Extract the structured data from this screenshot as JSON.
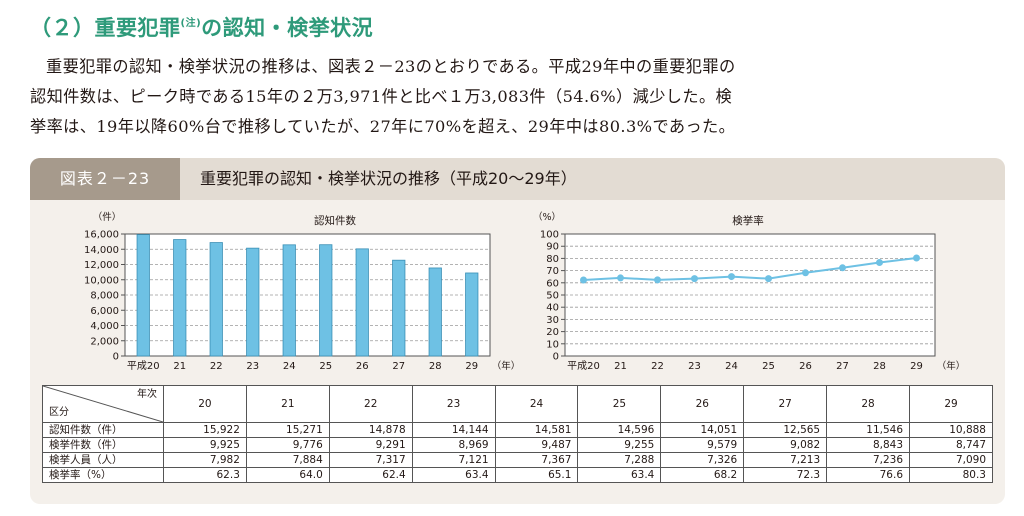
{
  "section": {
    "number": "（２）",
    "title_main": "重要犯罪",
    "title_note": "(注)",
    "title_rest": "の認知・検挙状況"
  },
  "paragraph": {
    "line1": "重要犯罪の認知・検挙状況の推移は、図表２－23のとおりである。平成29年中の重要犯罪の",
    "line2": "認知件数は、ピーク時である15年の２万3,971件と比べ１万3,083件（54.6%）減少した。検",
    "line3": "挙率は、19年以降60%台で推移していたが、27年に70%を超え、29年中は80.3%であった。"
  },
  "figure": {
    "tag": "図表２－23",
    "title": "重要犯罪の認知・検挙状況の推移（平成20〜29年）"
  },
  "chart_data": [
    {
      "type": "bar",
      "title": "認知件数",
      "ylabel": "（件）",
      "xlabel": "（年）",
      "categories": [
        "平成20",
        "21",
        "22",
        "23",
        "24",
        "25",
        "26",
        "27",
        "28",
        "29"
      ],
      "values": [
        15922,
        15271,
        14878,
        14144,
        14581,
        14596,
        14051,
        12565,
        11546,
        10888
      ],
      "ylim": [
        0,
        16000
      ],
      "yticks": [
        "0",
        "2,000",
        "4,000",
        "6,000",
        "8,000",
        "10,000",
        "12,000",
        "14,000",
        "16,000"
      ],
      "grid": true,
      "color": "#6ec1e4"
    },
    {
      "type": "line",
      "title": "検挙率",
      "ylabel": "（%）",
      "xlabel": "（年）",
      "categories": [
        "平成20",
        "21",
        "22",
        "23",
        "24",
        "25",
        "26",
        "27",
        "28",
        "29"
      ],
      "values": [
        62.3,
        64.0,
        62.4,
        63.4,
        65.1,
        63.4,
        68.2,
        72.3,
        76.6,
        80.3
      ],
      "ylim": [
        0,
        100
      ],
      "yticks": [
        "0",
        "10",
        "20",
        "30",
        "40",
        "50",
        "60",
        "70",
        "80",
        "90",
        "100"
      ],
      "grid": true,
      "color": "#6ec1e4"
    }
  ],
  "table": {
    "corner_top": "年次",
    "corner_bottom": "区分",
    "years": [
      "20",
      "21",
      "22",
      "23",
      "24",
      "25",
      "26",
      "27",
      "28",
      "29"
    ],
    "rows": [
      {
        "label": "認知件数（件）",
        "values": [
          "15,922",
          "15,271",
          "14,878",
          "14,144",
          "14,581",
          "14,596",
          "14,051",
          "12,565",
          "11,546",
          "10,888"
        ]
      },
      {
        "label": "検挙件数（件）",
        "values": [
          "9,925",
          "9,776",
          "9,291",
          "8,969",
          "9,487",
          "9,255",
          "9,579",
          "9,082",
          "8,843",
          "8,747"
        ]
      },
      {
        "label": "検挙人員（人）",
        "values": [
          "7,982",
          "7,884",
          "7,317",
          "7,121",
          "7,367",
          "7,288",
          "7,326",
          "7,213",
          "7,236",
          "7,090"
        ]
      },
      {
        "label": "検挙率（%）",
        "values": [
          "62.3",
          "64.0",
          "62.4",
          "63.4",
          "65.1",
          "63.4",
          "68.2",
          "72.3",
          "76.6",
          "80.3"
        ]
      }
    ]
  }
}
